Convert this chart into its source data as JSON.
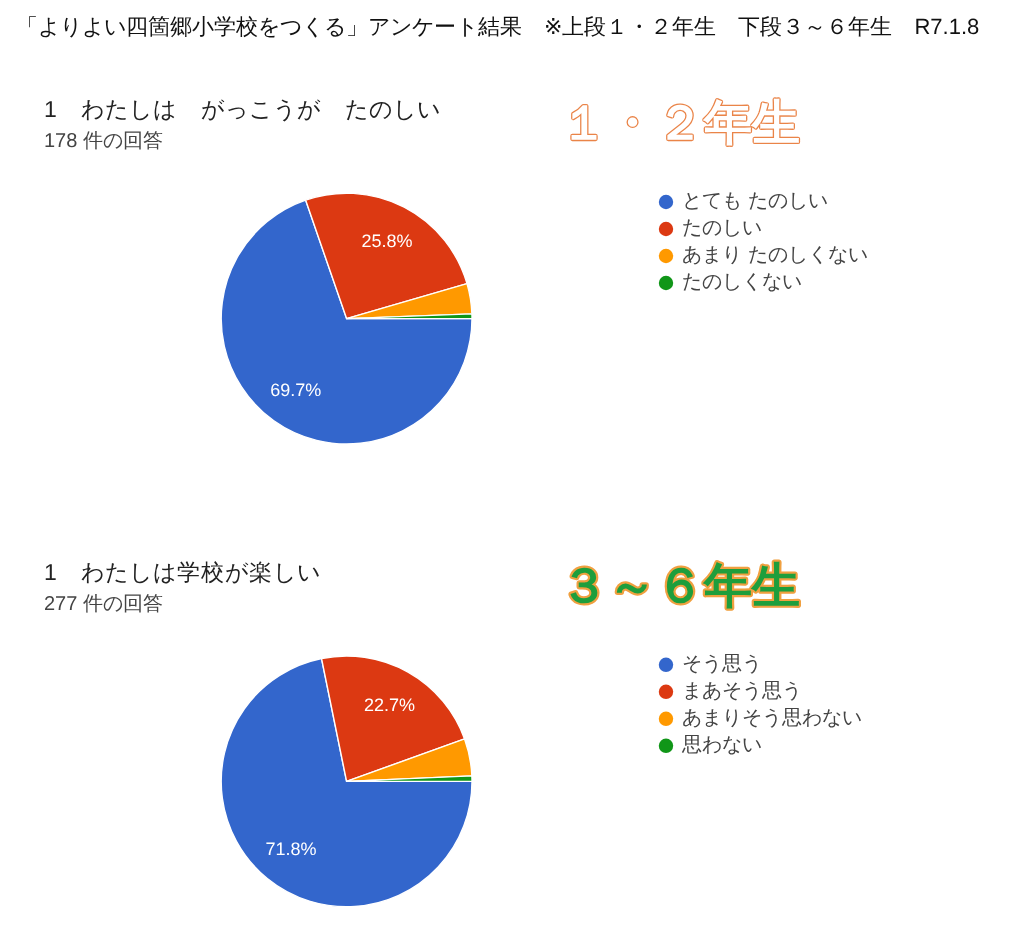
{
  "chart_data": [
    {
      "type": "pie",
      "title": "1　わたしは　がっこうが　たのしい",
      "subtitle": "178 件の回答",
      "annotations": [
        "「よりよい四箇郷小学校をつくる」アンケート結果　※上段１・２年生　下段３～６年生　R7.1.8",
        "１・２年生"
      ],
      "categories": [
        "とても たのしい",
        "たのしい",
        "あまり たのしくない",
        "たのしくない"
      ],
      "values": [
        69.7,
        25.8,
        3.9,
        0.6
      ],
      "colors": [
        "#3366cc",
        "#dc3912",
        "#ff9900",
        "#109618"
      ],
      "value_labels": [
        "69.7%",
        "25.8%",
        null,
        null
      ],
      "legend": "right"
    },
    {
      "type": "pie",
      "title": "1　わたしは学校が楽しい",
      "subtitle": "277 件の回答",
      "annotations": [
        "３～６年生"
      ],
      "categories": [
        "そう思う",
        "まあそう思う",
        "あまりそう思わない",
        "思わない"
      ],
      "values": [
        71.8,
        22.7,
        4.8,
        0.7
      ],
      "colors": [
        "#3366cc",
        "#dc3912",
        "#ff9900",
        "#109618"
      ],
      "value_labels": [
        "71.8%",
        "22.7%",
        null,
        null
      ],
      "legend": "right"
    }
  ]
}
